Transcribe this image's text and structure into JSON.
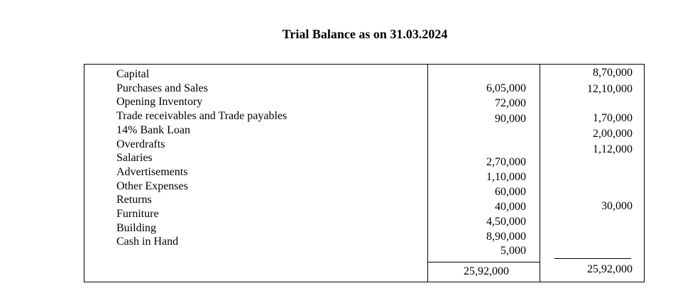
{
  "title": "Trial Balance as on 31.03.2024",
  "particulars": [
    "Capital",
    "Purchases and Sales",
    "Opening Inventory",
    "Trade receivables and Trade payables",
    "14% Bank Loan",
    "Overdrafts",
    "Salaries",
    "Advertisements",
    "Other Expenses",
    "Returns",
    "Furniture",
    "Building",
    "Cash in Hand"
  ],
  "debit_values": [
    "6,05,000",
    "72,000",
    "90,000",
    "2,70,000",
    "1,10,000",
    "60,000",
    "40,000",
    "4,50,000",
    "8,90,000",
    "5,000"
  ],
  "credit_values": [
    "8,70,000",
    "12,10,000",
    "1,70,000",
    "2,00,000",
    "1,12,000",
    "30,000"
  ],
  "totals": {
    "debit": "25,92,000",
    "credit": "25,92,000"
  }
}
